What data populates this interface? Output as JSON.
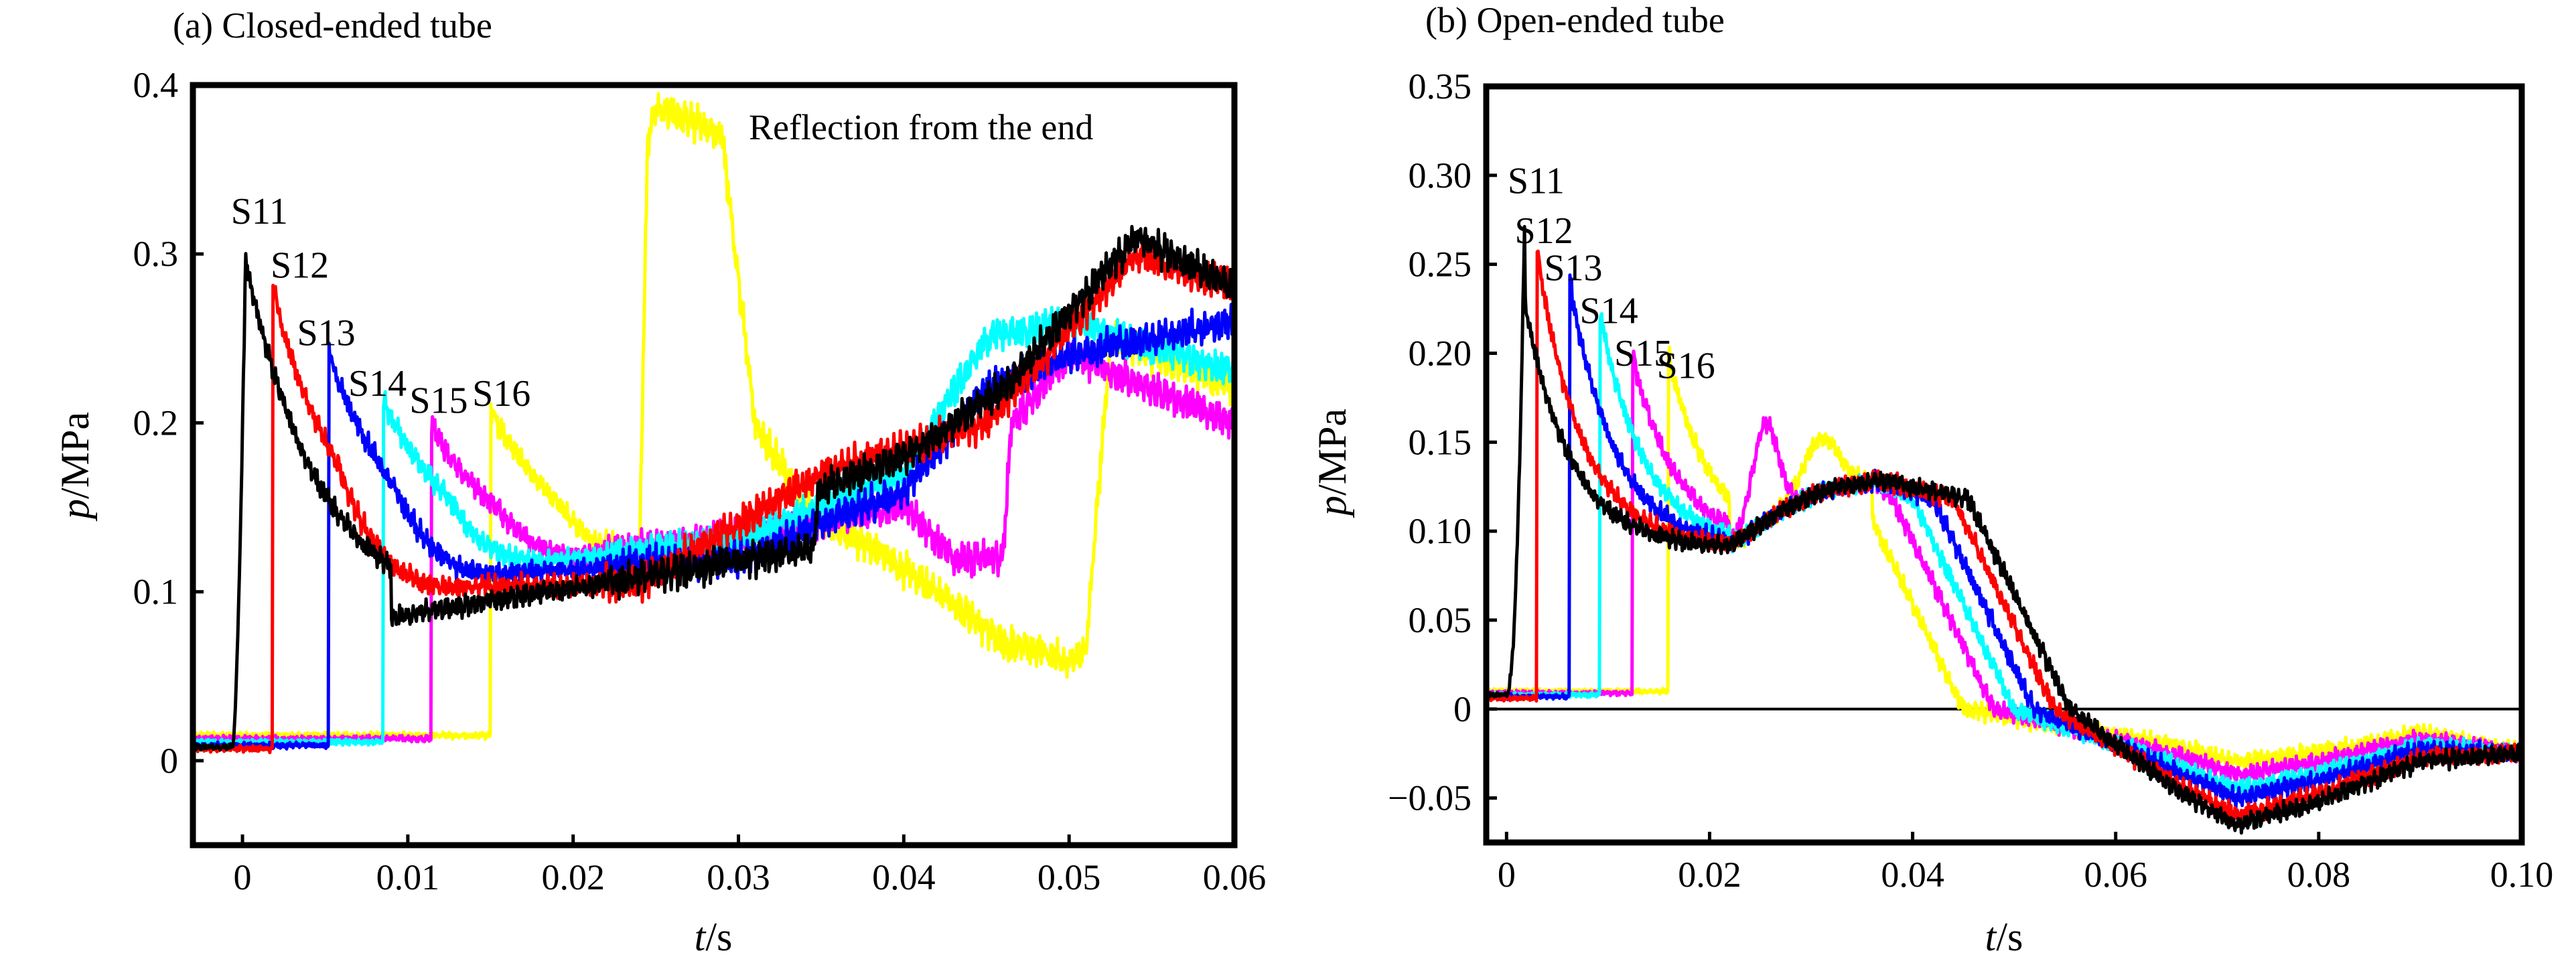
{
  "colors": {
    "S11": "#000000",
    "S12": "#ff0000",
    "S13": "#0000ff",
    "S14": "#00ffff",
    "S15": "#ff00ff",
    "S16": "#ffff00"
  },
  "chart_data": [
    {
      "type": "line",
      "title": "(a)  Closed-ended tube",
      "xlabel_var": "t",
      "xlabel_unit": "/s",
      "ylabel_var": "p",
      "ylabel_unit": "/MPa",
      "xlim": [
        -0.003,
        0.06
      ],
      "ylim": [
        -0.05,
        0.4
      ],
      "xticks": [
        {
          "value": 0,
          "label": "0"
        },
        {
          "value": 0.01,
          "label": "0.01"
        },
        {
          "value": 0.02,
          "label": "0.02"
        },
        {
          "value": 0.03,
          "label": "0.03"
        },
        {
          "value": 0.04,
          "label": "0.04"
        },
        {
          "value": 0.05,
          "label": "0.05"
        },
        {
          "value": 0.06,
          "label": "0.06"
        }
      ],
      "yticks": [
        {
          "value": 0,
          "label": "0"
        },
        {
          "value": 0.1,
          "label": "0.1"
        },
        {
          "value": 0.2,
          "label": "0.2"
        },
        {
          "value": 0.3,
          "label": "0.3"
        },
        {
          "value": 0.4,
          "label": "0.4"
        }
      ],
      "grid": false,
      "annotation": {
        "text": "Reflection from the end",
        "x": 0.0302,
        "y": 0.373
      },
      "series": [
        {
          "name": "S11",
          "arrival_t": 0.0,
          "peak_p": 0.305,
          "label_x": -0.0007,
          "label_y": 0.318
        },
        {
          "name": "S12",
          "arrival_t": 0.0018,
          "peak_p": 0.278,
          "label_x": 0.0017,
          "label_y": 0.286
        },
        {
          "name": "S13",
          "arrival_t": 0.0052,
          "peak_p": 0.24,
          "label_x": 0.0033,
          "label_y": 0.246
        },
        {
          "name": "S14",
          "arrival_t": 0.0085,
          "peak_p": 0.212,
          "label_x": 0.0064,
          "label_y": 0.216
        },
        {
          "name": "S15",
          "arrival_t": 0.0114,
          "peak_p": 0.197,
          "label_x": 0.0101,
          "label_y": 0.206
        },
        {
          "name": "S16",
          "arrival_t": 0.015,
          "peak_p": 0.207,
          "label_x": 0.0139,
          "label_y": 0.21
        }
      ]
    },
    {
      "type": "line",
      "title": "(b)  Open-ended tube",
      "xlabel_var": "t",
      "xlabel_unit": "/s",
      "ylabel_var": "p",
      "ylabel_unit": "/MPa",
      "xlim": [
        -0.002,
        0.1
      ],
      "ylim": [
        -0.075,
        0.35
      ],
      "xticks": [
        {
          "value": 0,
          "label": "0"
        },
        {
          "value": 0.02,
          "label": "0.02"
        },
        {
          "value": 0.04,
          "label": "0.04"
        },
        {
          "value": 0.06,
          "label": "0.06"
        },
        {
          "value": 0.08,
          "label": "0.08"
        },
        {
          "value": 0.1,
          "label": "0.10"
        }
      ],
      "yticks": [
        {
          "value": -0.05,
          "label": "−0.05"
        },
        {
          "value": 0,
          "label": "0"
        },
        {
          "value": 0.05,
          "label": "0.05"
        },
        {
          "value": 0.1,
          "label": "0.10"
        },
        {
          "value": 0.15,
          "label": "0.15"
        },
        {
          "value": 0.2,
          "label": "0.20"
        },
        {
          "value": 0.25,
          "label": "0.25"
        },
        {
          "value": 0.3,
          "label": "0.30"
        },
        {
          "value": 0.35,
          "label": "0.35"
        }
      ],
      "grid": false,
      "zero_line": true,
      "series": [
        {
          "name": "S11",
          "arrival_t": 0.0003,
          "peak_p": 0.283,
          "label_x": 0.0001,
          "label_y": 0.29
        },
        {
          "name": "S12",
          "arrival_t": 0.003,
          "peak_p": 0.256,
          "label_x": 0.0008,
          "label_y": 0.262
        },
        {
          "name": "S13",
          "arrival_t": 0.0062,
          "peak_p": 0.24,
          "label_x": 0.0037,
          "label_y": 0.241
        },
        {
          "name": "S14",
          "arrival_t": 0.0092,
          "peak_p": 0.222,
          "label_x": 0.0072,
          "label_y": 0.217
        },
        {
          "name": "S15",
          "arrival_t": 0.0124,
          "peak_p": 0.198,
          "label_x": 0.0106,
          "label_y": 0.193
        },
        {
          "name": "S16",
          "arrival_t": 0.0159,
          "peak_p": 0.198,
          "label_x": 0.0148,
          "label_y": 0.186
        }
      ]
    }
  ]
}
